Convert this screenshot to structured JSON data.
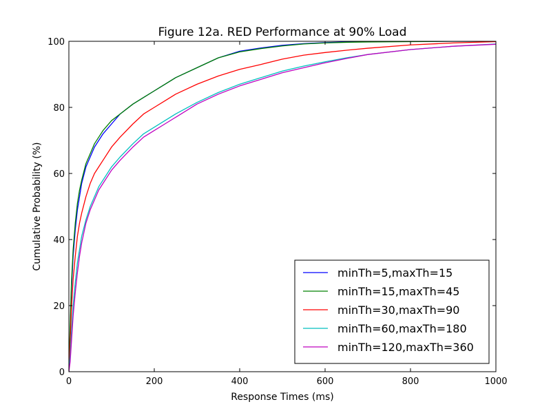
{
  "chart_data": {
    "type": "line",
    "title": "Figure 12a. RED Performance at 90% Load",
    "xlabel": "Response Times (ms)",
    "ylabel": "Cumulative Probability (%)",
    "xlim": [
      0,
      1000
    ],
    "ylim": [
      0,
      100
    ],
    "xticks": [
      "0",
      "200",
      "400",
      "600",
      "800",
      "1000"
    ],
    "yticks": [
      "0",
      "20",
      "40",
      "60",
      "80",
      "100"
    ],
    "grid": false,
    "legend_position": "lower-right",
    "series": [
      {
        "name": "minTh=5,maxTh=15",
        "color": "#0000ff",
        "x": [
          0,
          3,
          6,
          10,
          15,
          20,
          25,
          30,
          40,
          50,
          60,
          70,
          80,
          100,
          120,
          150,
          175,
          200,
          225,
          250,
          300,
          350,
          400,
          450,
          500,
          550,
          600,
          650,
          700,
          800,
          900,
          1000
        ],
        "y": [
          0,
          12,
          25,
          35,
          43,
          49,
          53,
          57,
          62,
          65,
          68,
          70,
          72,
          75,
          78,
          81,
          83,
          85,
          87,
          89,
          92,
          95,
          97,
          98,
          98.8,
          99.3,
          99.6,
          99.8,
          99.9,
          99.95,
          100,
          100
        ]
      },
      {
        "name": "minTh=15,maxTh=45",
        "color": "#008000",
        "x": [
          0,
          3,
          6,
          10,
          15,
          20,
          25,
          30,
          40,
          50,
          60,
          70,
          80,
          100,
          120,
          150,
          175,
          200,
          225,
          250,
          300,
          350,
          400,
          450,
          500,
          550,
          600,
          650,
          700,
          800,
          900,
          1000
        ],
        "y": [
          0,
          14,
          27,
          37,
          45,
          51,
          55,
          58,
          63,
          66,
          69,
          71,
          73,
          76,
          78,
          81,
          83,
          85,
          87,
          89,
          92,
          95,
          96.8,
          97.8,
          98.6,
          99.2,
          99.5,
          99.7,
          99.8,
          99.9,
          100,
          100
        ]
      },
      {
        "name": "minTh=30,maxTh=90",
        "color": "#ff0000",
        "x": [
          0,
          3,
          6,
          10,
          15,
          20,
          25,
          30,
          40,
          50,
          60,
          70,
          80,
          100,
          120,
          150,
          175,
          200,
          225,
          250,
          300,
          350,
          400,
          450,
          500,
          550,
          600,
          650,
          700,
          800,
          900,
          1000
        ],
        "y": [
          0,
          9,
          19,
          28,
          35,
          41,
          45,
          48,
          53,
          57,
          60,
          62,
          64,
          68,
          71,
          75,
          78,
          80,
          82,
          84,
          87,
          89.5,
          91.5,
          93,
          94.6,
          95.8,
          96.6,
          97.3,
          97.9,
          98.9,
          99.5,
          99.9
        ]
      },
      {
        "name": "minTh=60,maxTh=180",
        "color": "#00bfbf",
        "x": [
          0,
          3,
          6,
          10,
          15,
          20,
          25,
          30,
          40,
          50,
          60,
          70,
          80,
          100,
          120,
          150,
          175,
          200,
          225,
          250,
          300,
          350,
          400,
          450,
          500,
          550,
          600,
          650,
          700,
          800,
          900,
          1000
        ],
        "y": [
          0,
          5,
          12,
          20,
          27,
          33,
          37,
          41,
          46,
          50,
          53,
          56,
          58,
          62,
          65,
          69,
          72,
          74,
          76,
          78,
          81.5,
          84.5,
          87,
          89,
          91,
          92.5,
          93.8,
          95,
          96,
          97.5,
          98.5,
          99.2
        ]
      },
      {
        "name": "minTh=120,maxTh=360",
        "color": "#bf00bf",
        "x": [
          0,
          3,
          6,
          10,
          15,
          20,
          25,
          30,
          40,
          50,
          60,
          70,
          80,
          100,
          120,
          150,
          175,
          200,
          225,
          250,
          300,
          350,
          400,
          450,
          500,
          550,
          600,
          650,
          700,
          800,
          900,
          1000
        ],
        "y": [
          0,
          3,
          9,
          17,
          24,
          30,
          35,
          39,
          45,
          49,
          52,
          55,
          57,
          61,
          64,
          68,
          71,
          73,
          75,
          77,
          81,
          84,
          86.5,
          88.5,
          90.5,
          92,
          93.5,
          94.8,
          96,
          97.5,
          98.5,
          99.1
        ]
      }
    ]
  }
}
